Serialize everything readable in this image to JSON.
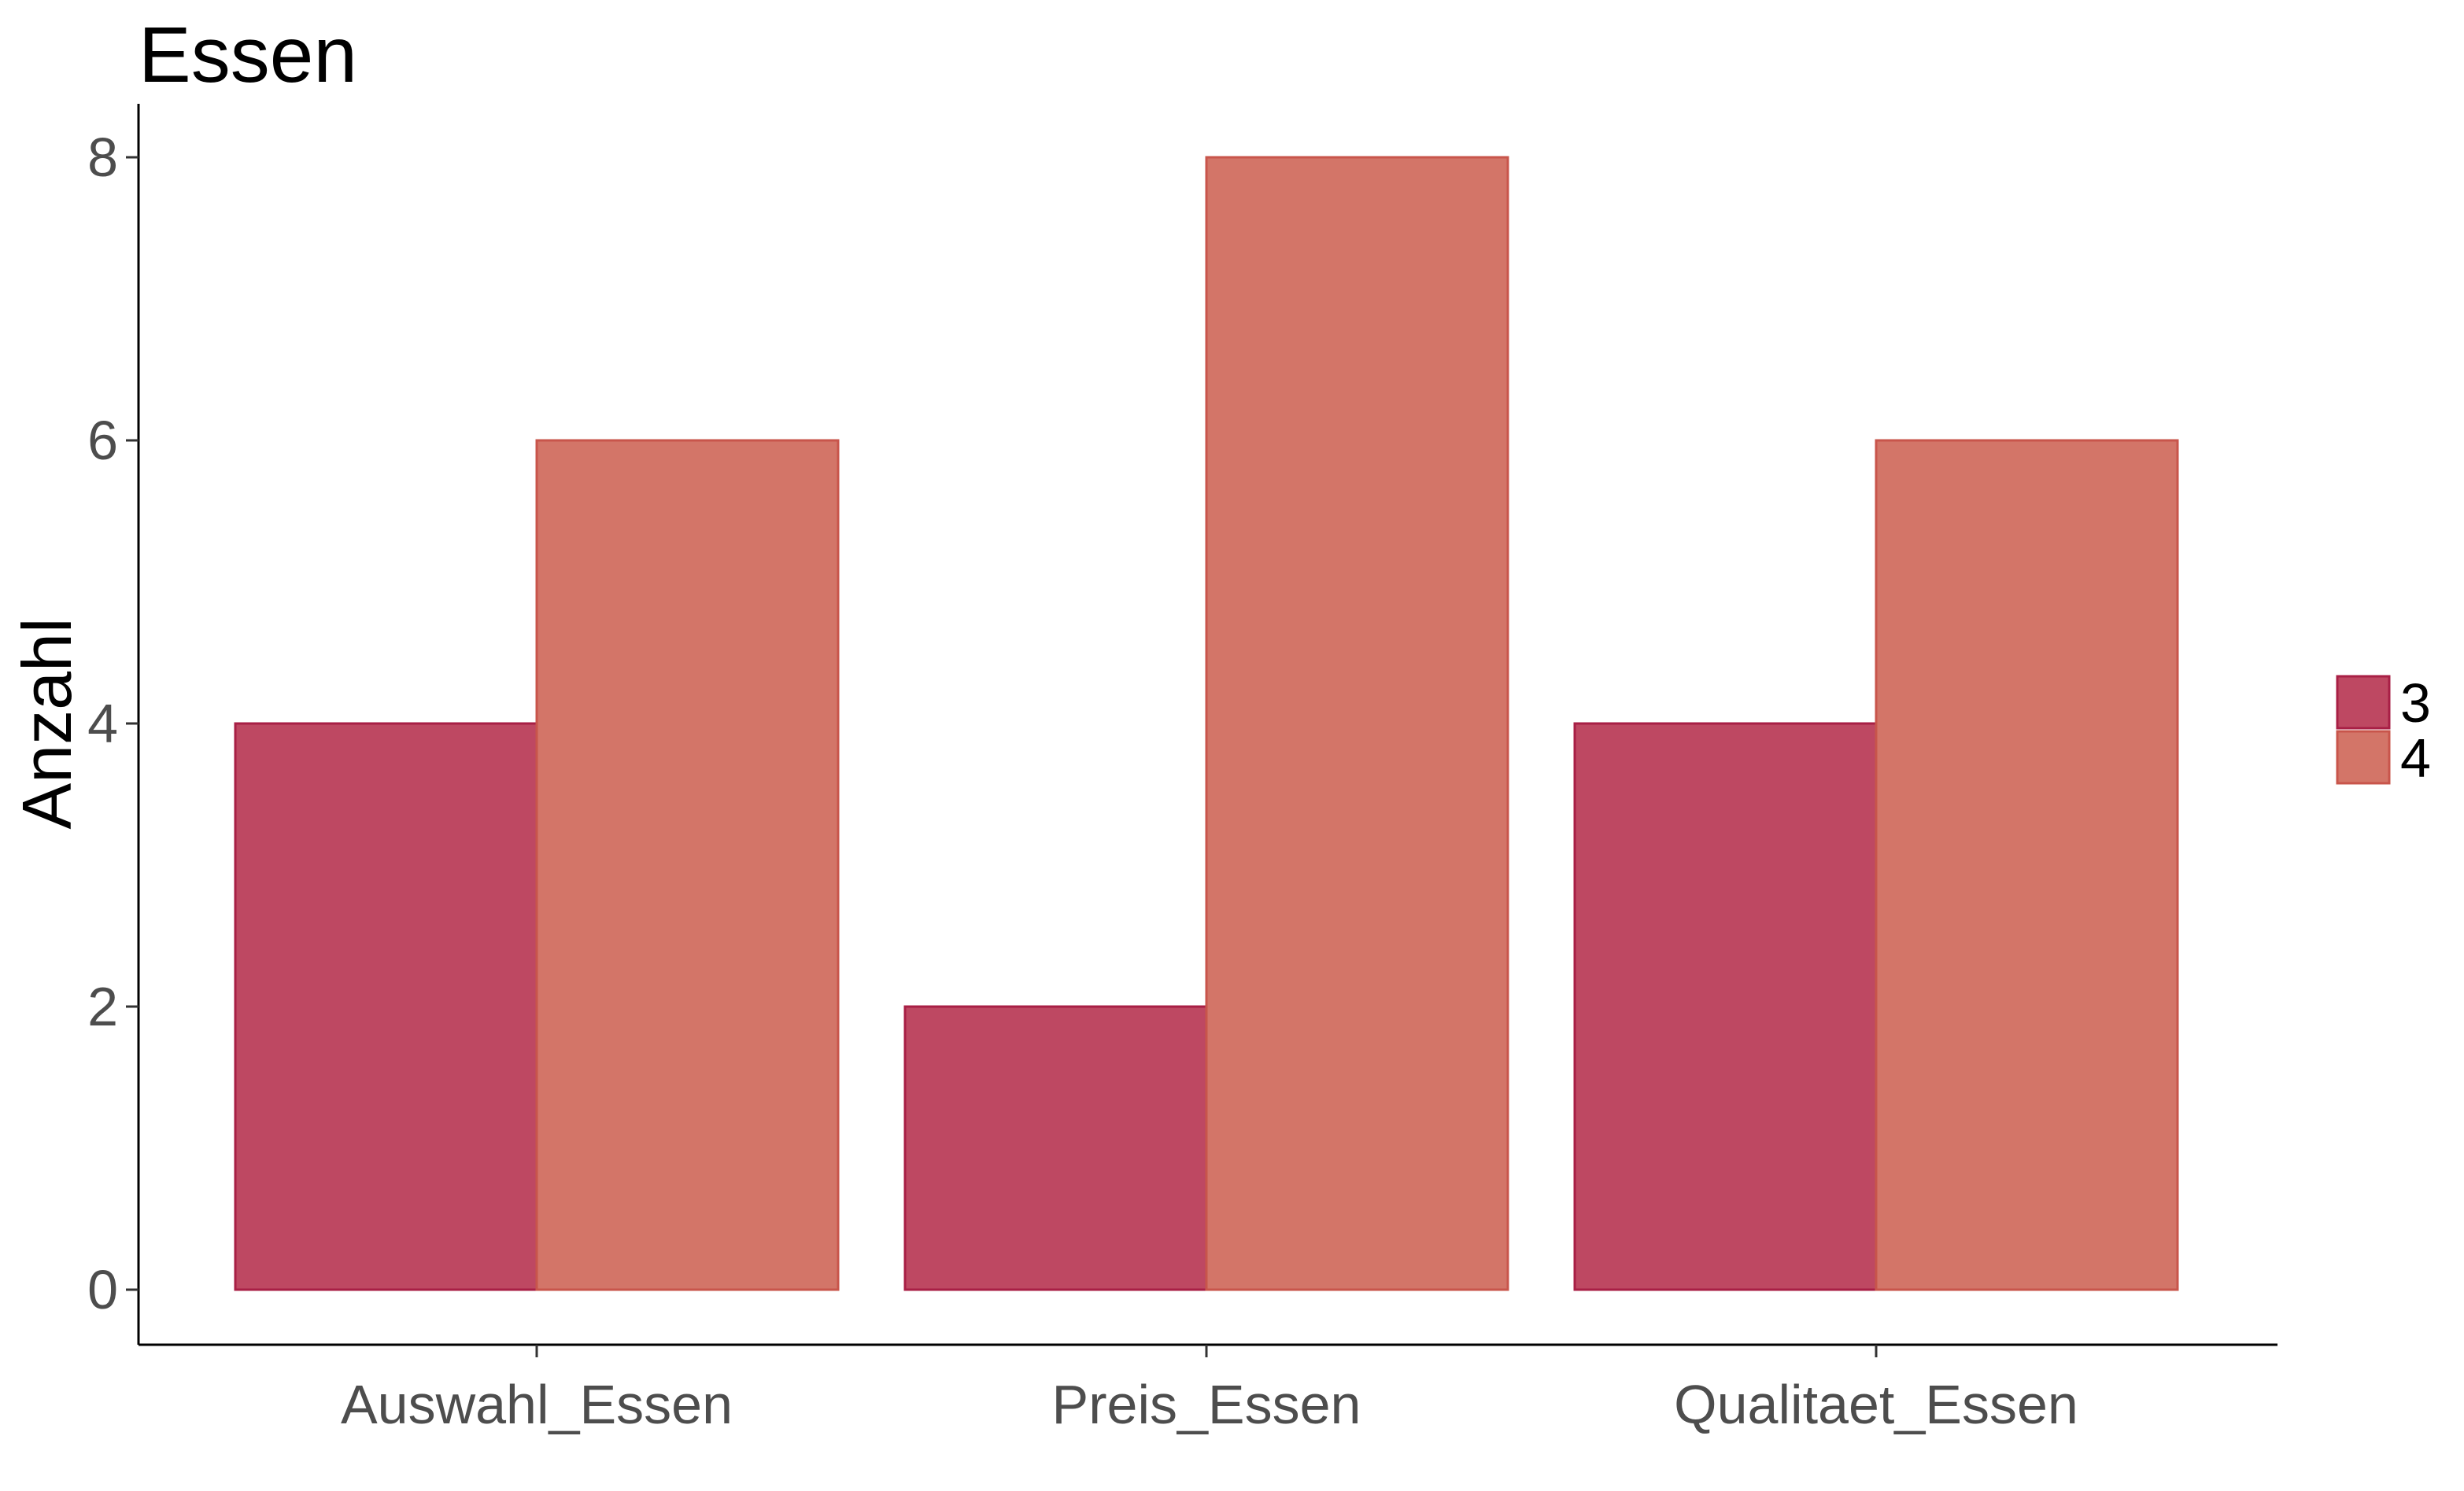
{
  "chart_data": {
    "type": "bar",
    "title": "Essen",
    "xlabel": "",
    "ylabel": "Anzahl",
    "categories": [
      "Auswahl_Essen",
      "Preis_Essen",
      "Qualitaet_Essen"
    ],
    "series": [
      {
        "name": "3",
        "values": [
          4,
          2,
          4
        ],
        "color": "#be4862",
        "stroke": "#a81f45"
      },
      {
        "name": "4",
        "values": [
          6,
          8,
          6
        ],
        "color": "#d37568",
        "stroke": "#c8554b"
      }
    ],
    "ylim": [
      0,
      8.4
    ],
    "yticks": [
      0,
      2,
      4,
      6,
      8
    ],
    "ytick_labels": [
      "0",
      "2",
      "4",
      "6",
      "8"
    ],
    "grid": false,
    "legend_position": "right"
  }
}
